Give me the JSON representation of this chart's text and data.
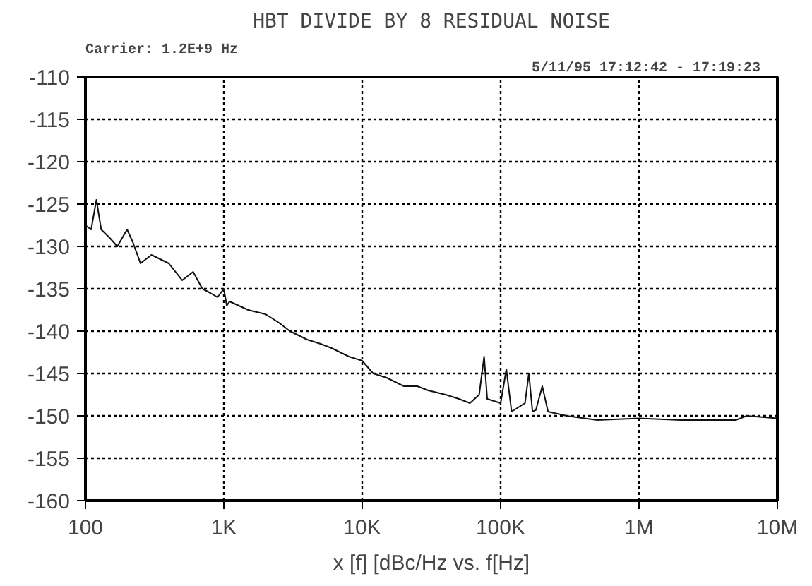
{
  "chart_data": {
    "type": "line",
    "title": "HBT DIVIDE BY 8 RESIDUAL NOISE",
    "subtitle": "Carrier: 1.2E+9 Hz",
    "annotations": [
      "5/11/95   17:12:42 - 17:19:23"
    ],
    "xlabel": "x [f] [dBc/Hz vs. f[Hz]",
    "x": [
      100,
      110,
      120,
      130,
      150,
      170,
      200,
      220,
      250,
      300,
      400,
      500,
      600,
      700,
      800,
      900,
      1000,
      1050,
      1100,
      1500,
      2000,
      2500,
      3000,
      4000,
      5000,
      6000,
      8000,
      10000,
      12000,
      15000,
      20000,
      25000,
      30000,
      40000,
      50000,
      60000,
      70000,
      76000,
      80000,
      100000,
      110000,
      120000,
      150000,
      160000,
      170000,
      180000,
      200000,
      220000,
      300000,
      500000,
      1000000,
      2000000,
      3000000,
      5000000,
      6000000,
      10000000
    ],
    "series": [
      {
        "color": "#111111",
        "values": [
          -127.5,
          -128,
          -124.5,
          -128,
          -129,
          -130,
          -128,
          -129.5,
          -132,
          -131,
          -132,
          -134,
          -133,
          -135,
          -135.5,
          -136,
          -135,
          -137,
          -136.5,
          -137.5,
          -138,
          -139,
          -140,
          -141,
          -141.5,
          -142,
          -143,
          -143.5,
          -145,
          -145.5,
          -146.5,
          -146.5,
          -147,
          -147.5,
          -148,
          -148.5,
          -147.5,
          -143,
          -148,
          -148.5,
          -144.5,
          -149.5,
          -148.5,
          -145,
          -149.5,
          -149.3,
          -146.5,
          -149.5,
          -150,
          -150.5,
          -150.3,
          -150.5,
          -150.5,
          -150.5,
          -150,
          -150.3
        ]
      }
    ],
    "log": "x",
    "xlim": [
      100,
      10000000
    ],
    "xticks": [
      {
        "value": 100,
        "label": "100"
      },
      {
        "value": 1000,
        "label": "1K"
      },
      {
        "value": 10000,
        "label": "10K"
      },
      {
        "value": 100000,
        "label": "100K"
      },
      {
        "value": 1000000,
        "label": "1M"
      },
      {
        "value": 10000000,
        "label": "10M"
      }
    ],
    "ylim": [
      -160,
      -110
    ],
    "yticks": [
      -160,
      -155,
      -150,
      -145,
      -140,
      -135,
      -130,
      -125,
      -120,
      -115,
      -110
    ],
    "grid": true,
    "line_style": "solid",
    "marker": "none"
  }
}
